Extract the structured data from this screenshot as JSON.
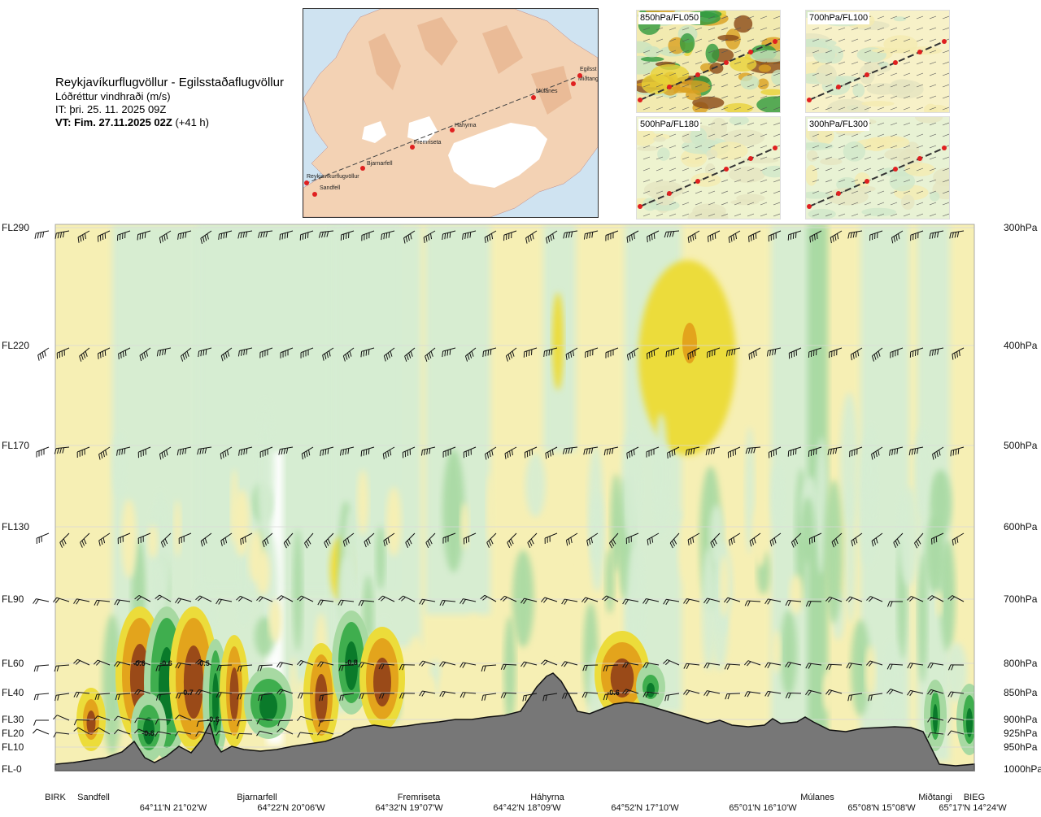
{
  "header": {
    "route": "Reykjavíkurflugvöllur - Egilsstaðaflugvöllur",
    "field": "Lóðréttur vindhraði (m/s)",
    "issued": "IT: þri. 25. 11. 2025 09Z",
    "valid_label": "VT: Fim. 27.11.2025 02Z",
    "valid_offset": "(+41 h)"
  },
  "map": {
    "points": [
      {
        "label": "Reykjavíkurflugvöllur"
      },
      {
        "label": "Sandfell"
      },
      {
        "label": "Bjarnarfell"
      },
      {
        "label": "Fremriseta"
      },
      {
        "label": "Háhyrna"
      },
      {
        "label": "Múlanes"
      },
      {
        "label": "Miðtangi"
      },
      {
        "label": "Egilsst"
      }
    ]
  },
  "thumbnails": [
    {
      "label": "850hPa/FL050"
    },
    {
      "label": "700hPa/FL100"
    },
    {
      "label": "500hPa/FL180"
    },
    {
      "label": "300hPa/FL300"
    }
  ],
  "chart_data": {
    "type": "heatmap",
    "x_stations": [
      {
        "name": "BIRK"
      },
      {
        "name": "Sandfell"
      },
      {
        "name": "Bjarnarfell"
      },
      {
        "name": "Fremriseta"
      },
      {
        "name": "Háhyrna"
      },
      {
        "name": "Múlanes"
      },
      {
        "name": "Miðtangi"
      },
      {
        "name": "BIEG"
      }
    ],
    "x_coords": [
      "64°11'N 21°02'W",
      "64°22'N 20°06'W",
      "64°32'N 19°07'W",
      "64°42'N 18°09'W",
      "64°52'N 17°10'W",
      "65°01'N 16°10'W",
      "65°08'N 15°08'W",
      "65°17'N 14°24'W"
    ],
    "left_axis": [
      "FL290",
      "FL220",
      "FL170",
      "FL130",
      "FL90",
      "FL60",
      "FL40",
      "FL30",
      "FL20",
      "FL10",
      "FL-0"
    ],
    "right_axis": [
      "300hPa",
      "400hPa",
      "500hPa",
      "600hPa",
      "700hPa",
      "800hPa",
      "850hPa",
      "900hPa",
      "925hPa",
      "950hPa",
      "1000hPa"
    ],
    "contour_labels": [
      "-0.6",
      "-0.6",
      "-0.5",
      "-0.7",
      "-0.6",
      "-0.8",
      "-0.6",
      "-0.6"
    ],
    "colors": {
      "strong_neg": "#0a7a2a",
      "neg": "#3fae4e",
      "weak_neg": "#a7d9a2",
      "faint_neg": "#d6edd3",
      "faint_pos": "#f6efb4",
      "weak_pos": "#ecdc3a",
      "pos": "#e3a41c",
      "strong_pos": "#9a4a18",
      "terrain": "#777777"
    }
  }
}
